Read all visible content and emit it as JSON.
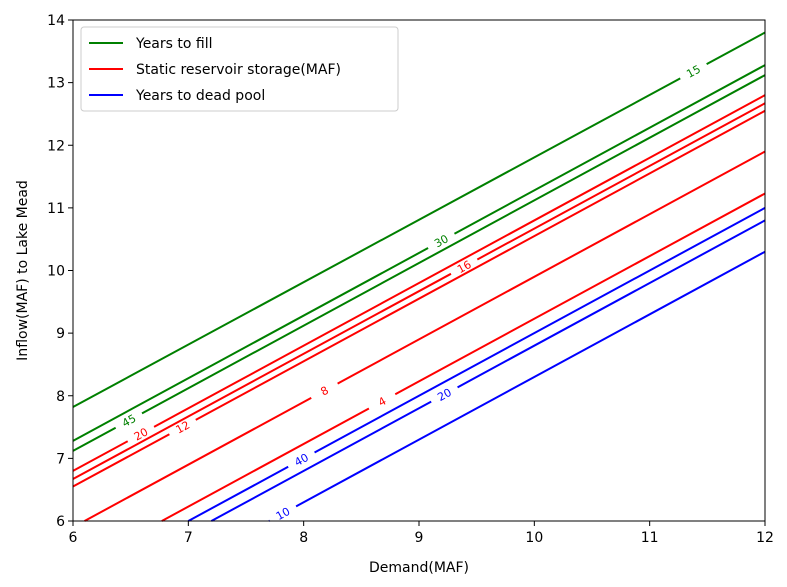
{
  "chart_data": {
    "type": "line",
    "title": "",
    "xlabel": "Demand(MAF)",
    "ylabel": "Inflow(MAF) to Lake Mead",
    "xlim": [
      6,
      12
    ],
    "ylim": [
      6,
      14
    ],
    "xticks": [
      6,
      7,
      8,
      9,
      10,
      11,
      12
    ],
    "yticks": [
      6,
      7,
      8,
      9,
      10,
      11,
      12,
      13,
      14
    ],
    "grid": false,
    "legend_position": "top-left",
    "legend": [
      {
        "label": "Years to fill",
        "color": "#008000"
      },
      {
        "label": "Static reservoir storage(MAF)",
        "color": "#ff0000"
      },
      {
        "label": "Years to dead pool",
        "color": "#0000ff"
      }
    ],
    "contours": [
      {
        "group": "Years to fill",
        "color": "#008000",
        "label": "15",
        "x": [
          6,
          12
        ],
        "y": [
          7.82,
          13.8
        ],
        "label_at": [
          11.38,
          13.18
        ]
      },
      {
        "group": "Years to fill",
        "color": "#008000",
        "label": "30",
        "x": [
          6,
          12
        ],
        "y": [
          7.28,
          13.28
        ],
        "label_at": [
          9.2,
          10.45
        ]
      },
      {
        "group": "Years to fill",
        "color": "#008000",
        "label": "45",
        "x": [
          6,
          12
        ],
        "y": [
          7.12,
          13.12
        ],
        "label_at": [
          6.5,
          7.55
        ]
      },
      {
        "group": "Static reservoir storage(MAF)",
        "color": "#ff0000",
        "label": "20",
        "x": [
          6,
          12
        ],
        "y": [
          6.8,
          12.8
        ],
        "label_at": [
          6.6,
          7.35
        ]
      },
      {
        "group": "Static reservoir storage(MAF)",
        "color": "#ff0000",
        "label": "16",
        "x": [
          6,
          12
        ],
        "y": [
          6.67,
          12.67
        ],
        "label_at": [
          9.38,
          10.1
        ]
      },
      {
        "group": "Static reservoir storage(MAF)",
        "color": "#ff0000",
        "label": "12",
        "x": [
          6,
          12
        ],
        "y": [
          6.55,
          12.55
        ],
        "label_at": [
          6.95,
          7.5
        ]
      },
      {
        "group": "Static reservoir storage(MAF)",
        "color": "#ff0000",
        "label": "8",
        "x": [
          6.1,
          12
        ],
        "y": [
          6.0,
          11.9
        ],
        "label_at": [
          8.18,
          8.08
        ]
      },
      {
        "group": "Static reservoir storage(MAF)",
        "color": "#ff0000",
        "label": "4",
        "x": [
          6.77,
          12
        ],
        "y": [
          6.0,
          11.23
        ],
        "label_at": [
          8.68,
          7.91
        ]
      },
      {
        "group": "Years to dead pool",
        "color": "#0000ff",
        "label": "40",
        "x": [
          7.0,
          12
        ],
        "y": [
          6.0,
          11.0
        ],
        "label_at": [
          7.98,
          6.98
        ]
      },
      {
        "group": "Years to dead pool",
        "color": "#0000ff",
        "label": "20",
        "x": [
          7.2,
          12
        ],
        "y": [
          6.0,
          10.8
        ],
        "label_at": [
          9.22,
          8.02
        ]
      },
      {
        "group": "Years to dead pool",
        "color": "#0000ff",
        "label": "10",
        "x": [
          7.7,
          12
        ],
        "y": [
          6.0,
          10.3
        ],
        "label_at": [
          7.82,
          6.12
        ]
      }
    ]
  }
}
